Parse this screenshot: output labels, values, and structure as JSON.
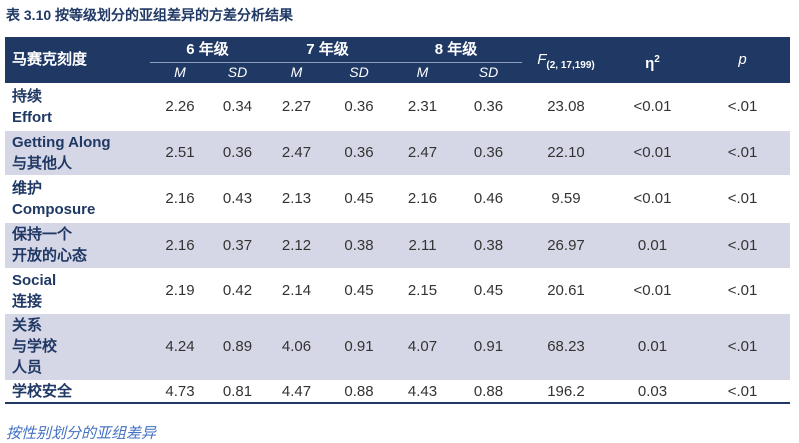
{
  "title": "表 3.10 按等级划分的亚组差异的方差分析结果",
  "table": {
    "header": {
      "scale": "马赛克刻度",
      "groups": [
        "6 年级",
        "7 年级",
        "8 年级"
      ],
      "subheaders": [
        "M",
        "SD",
        "M",
        "SD",
        "M",
        "SD"
      ],
      "f": {
        "symbol": "F",
        "subscript": "(2, 17,199)"
      },
      "eta": {
        "symbol": "η",
        "superscript": "2"
      },
      "p": "p"
    },
    "rows": [
      {
        "label": [
          "持续",
          "Effort"
        ],
        "values": [
          "2.26",
          "0.34",
          "2.27",
          "0.36",
          "2.31",
          "0.36",
          "23.08",
          "<0.01",
          "<.01"
        ]
      },
      {
        "label": [
          "Getting Along",
          "与其他人"
        ],
        "values": [
          "2.51",
          "0.36",
          "2.47",
          "0.36",
          "2.47",
          "0.36",
          "22.10",
          "<0.01",
          "<.01"
        ]
      },
      {
        "label": [
          "维护",
          "Composure"
        ],
        "values": [
          "2.16",
          "0.43",
          "2.13",
          "0.45",
          "2.16",
          "0.46",
          "9.59",
          "<0.01",
          "<.01"
        ]
      },
      {
        "label": [
          "保持一个",
          "开放的心态"
        ],
        "values": [
          "2.16",
          "0.37",
          "2.12",
          "0.38",
          "2.11",
          "0.38",
          "26.97",
          "0.01",
          "<.01"
        ]
      },
      {
        "label": [
          "Social",
          "连接"
        ],
        "values": [
          "2.19",
          "0.42",
          "2.14",
          "0.45",
          "2.15",
          "0.45",
          "20.61",
          "<0.01",
          "<.01"
        ]
      },
      {
        "label": [
          "关系",
          "与学校",
          "人员"
        ],
        "values": [
          "4.24",
          "0.89",
          "4.06",
          "0.91",
          "4.07",
          "0.91",
          "68.23",
          "0.01",
          "<.01"
        ]
      },
      {
        "label": [
          "学校安全"
        ],
        "values": [
          "4.73",
          "0.81",
          "4.47",
          "0.88",
          "4.43",
          "0.88",
          "196.2",
          "0.03",
          "<.01"
        ]
      }
    ]
  },
  "next_section": "按性别划分的亚组差异"
}
